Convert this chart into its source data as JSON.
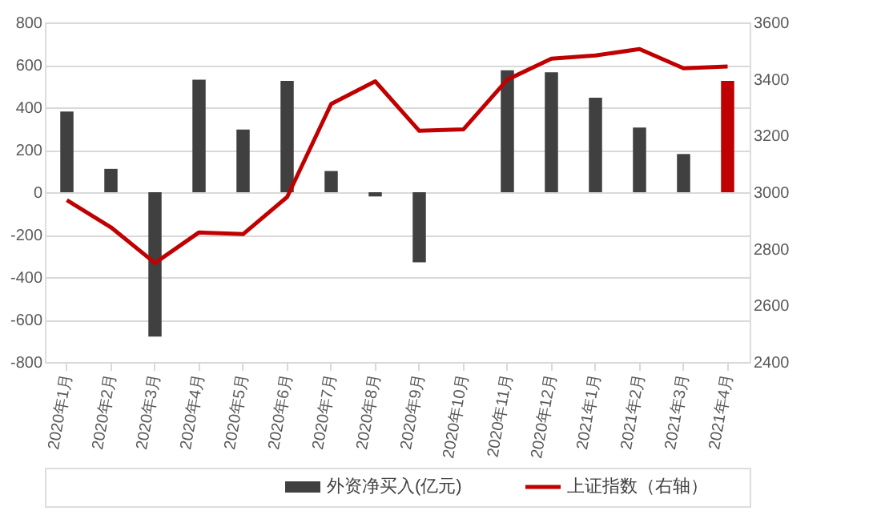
{
  "chart_data": {
    "type": "bar",
    "categories": [
      "2020年1月",
      "2020年2月",
      "2020年3月",
      "2020年4月",
      "2020年5月",
      "2020年6月",
      "2020年7月",
      "2020年8月",
      "2020年9月",
      "2020年10月",
      "2020年11月",
      "2020年12月",
      "2021年1月",
      "2021年2月",
      "2021年3月",
      "2021年4月"
    ],
    "series": [
      {
        "name": "外资净买入(亿元)",
        "color": "#404040",
        "colors": [
          "#404040",
          "#404040",
          "#404040",
          "#404040",
          "#404040",
          "#404040",
          "#404040",
          "#404040",
          "#404040",
          "#404040",
          "#404040",
          "#404040",
          "#404040",
          "#404040",
          "#404040",
          "#c00000"
        ],
        "values": [
          380,
          110,
          -680,
          530,
          295,
          525,
          100,
          -20,
          -330,
          0,
          575,
          565,
          445,
          305,
          180,
          525
        ]
      },
      {
        "name": "上证指数（右轴）",
        "type": "line",
        "axis": "y2",
        "color": "#c00000",
        "values": [
          2972,
          2876,
          2750,
          2858,
          2852,
          2983,
          3312,
          3392,
          3217,
          3222,
          3398,
          3472,
          3483,
          3506,
          3438,
          3444
        ]
      }
    ],
    "ylim": [
      -800,
      800
    ],
    "yticks": [
      -800,
      -600,
      -400,
      -200,
      0,
      200,
      400,
      600,
      800
    ],
    "y2lim": [
      2400,
      3600
    ],
    "y2ticks": [
      2400,
      2600,
      2800,
      3000,
      3200,
      3400,
      3600
    ],
    "grid": "y",
    "legend": "bottom",
    "marker": "none",
    "line_style": "solid"
  }
}
